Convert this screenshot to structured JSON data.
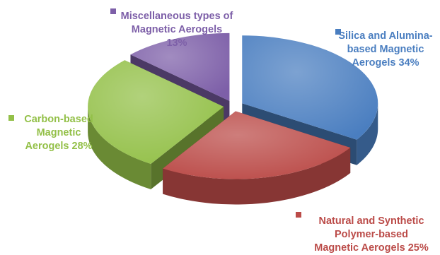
{
  "chart_data": {
    "type": "pie",
    "title": "",
    "slices": [
      {
        "label": [
          "Silica and Alumina-",
          "based Magnetic",
          "Aerogels 34%"
        ],
        "value": 34,
        "color": "#4a7ec0"
      },
      {
        "label": [
          "Natural and Synthetic",
          "Polymer-based",
          "Magnetic Aerogels 25%"
        ],
        "value": 25,
        "color": "#bb4b48"
      },
      {
        "label": [
          "Carbon-based",
          "Magnetic",
          "Aerogels 28%"
        ],
        "value": 28,
        "color": "#93c048"
      },
      {
        "label": [
          "Miscellaneous types of",
          "Magnetic Aerogels",
          "13%"
        ],
        "value": 13,
        "color": "#7d5fa8"
      }
    ],
    "legend": "labels beside slices",
    "style": "3d-exploded"
  }
}
